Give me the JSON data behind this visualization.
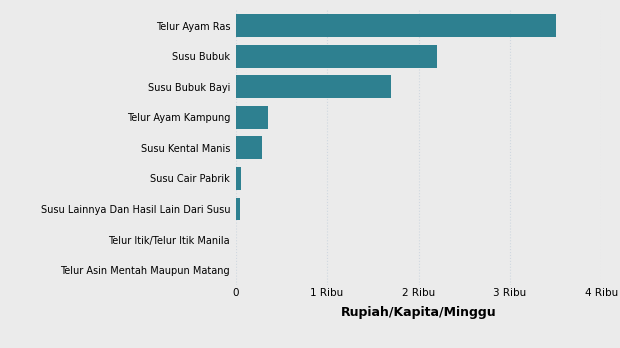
{
  "categories": [
    "Telur Asin Mentah Maupun Matang",
    "Telur Itik/Telur Itik Manila",
    "Susu Lainnya Dan Hasil Lain Dari Susu",
    "Susu Cair Pabrik",
    "Susu Kental Manis",
    "Telur Ayam Kampung",
    "Susu Bubuk Bayi",
    "Susu Bubuk",
    "Telur Ayam Ras"
  ],
  "values": [
    0,
    0,
    50,
    60,
    290,
    355,
    1700,
    2200,
    3500
  ],
  "bar_color": "#2e8090",
  "background_color": "#ebebeb",
  "xlabel": "Rupiah/Kapita/Minggu",
  "xlim": [
    0,
    4000
  ],
  "xtick_labels": [
    "0",
    "1 Ribu",
    "2 Ribu",
    "3 Ribu",
    "4 Ribu"
  ],
  "xtick_values": [
    0,
    1000,
    2000,
    3000,
    4000
  ],
  "grid_color": "#d0d8e0",
  "bar_height": 0.75
}
